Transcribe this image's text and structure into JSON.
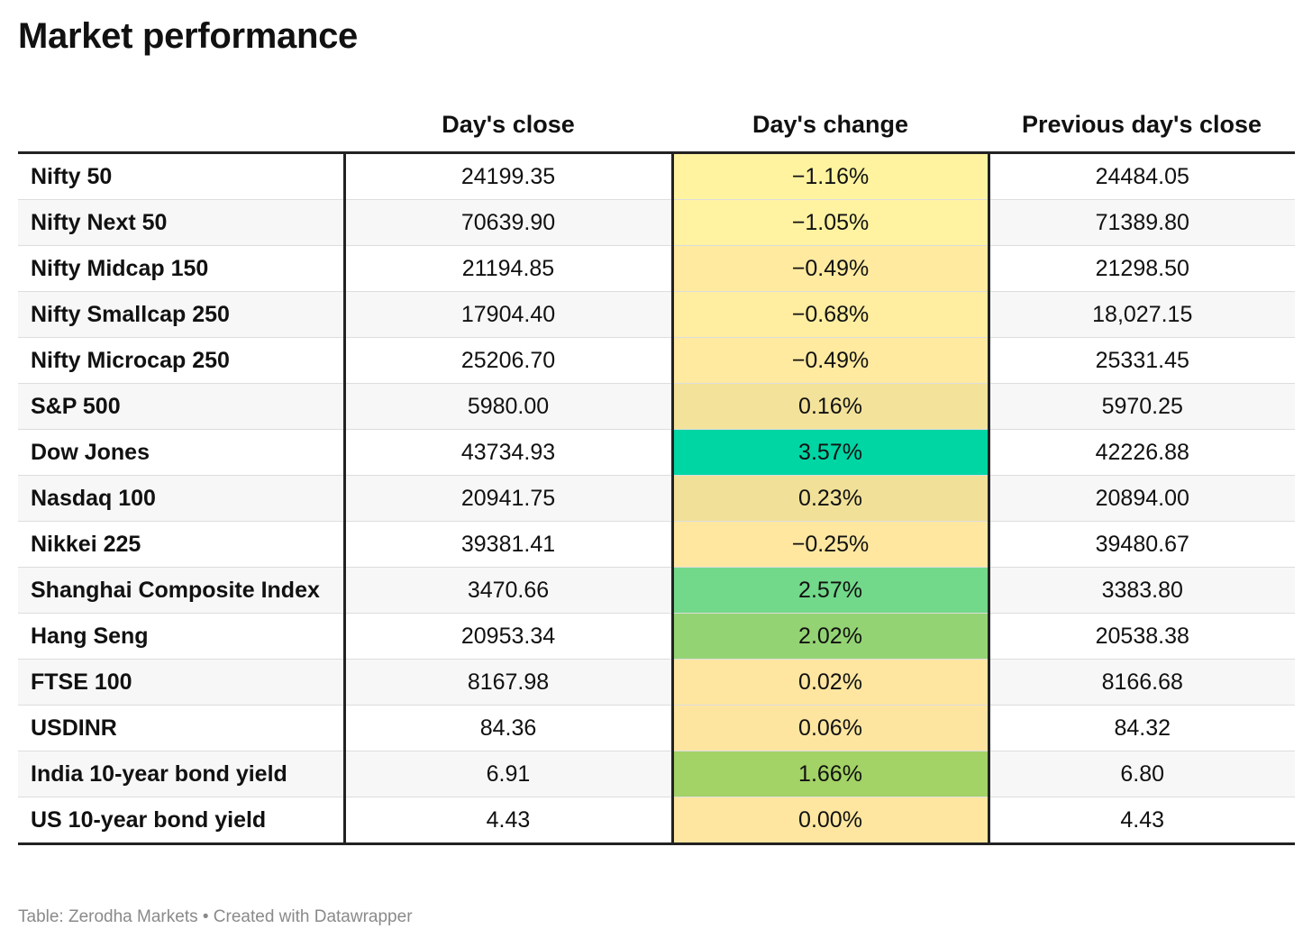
{
  "title": "Market performance",
  "footer": "Table: Zerodha Markets • Created with Datawrapper",
  "chart_data": {
    "type": "table",
    "title": "Market performance",
    "columns": [
      "",
      "Day's close",
      "Day's change",
      "Previous day's close"
    ],
    "rows": [
      {
        "name": "Nifty 50",
        "close": "24199.35",
        "change": "−1.16%",
        "change_value": -1.16,
        "prev": "24484.05",
        "color": "#fff3a0"
      },
      {
        "name": "Nifty Next 50",
        "close": "70639.90",
        "change": "−1.05%",
        "change_value": -1.05,
        "prev": "71389.80",
        "color": "#fff2a0"
      },
      {
        "name": "Nifty Midcap 150",
        "close": "21194.85",
        "change": "−0.49%",
        "change_value": -0.49,
        "prev": "21298.50",
        "color": "#ffeaa0"
      },
      {
        "name": "Nifty Smallcap 250",
        "close": "17904.40",
        "change": "−0.68%",
        "change_value": -0.68,
        "prev": "18,027.15",
        "color": "#ffeda0"
      },
      {
        "name": "Nifty Microcap 250",
        "close": "25206.70",
        "change": "−0.49%",
        "change_value": -0.49,
        "prev": "25331.45",
        "color": "#ffeaa0"
      },
      {
        "name": "S&P 500",
        "close": "5980.00",
        "change": "0.16%",
        "change_value": 0.16,
        "prev": "5970.25",
        "color": "#f3e29a"
      },
      {
        "name": "Dow Jones",
        "close": "43734.93",
        "change": "3.57%",
        "change_value": 3.57,
        "prev": "42226.88",
        "color": "#00d5a4"
      },
      {
        "name": "Nasdaq 100",
        "close": "20941.75",
        "change": "0.23%",
        "change_value": 0.23,
        "prev": "20894.00",
        "color": "#f1e198"
      },
      {
        "name": "Nikkei 225",
        "close": "39381.41",
        "change": "−0.25%",
        "change_value": -0.25,
        "prev": "39480.67",
        "color": "#ffe7a0"
      },
      {
        "name": "Shanghai Composite Index",
        "close": "3470.66",
        "change": "2.57%",
        "change_value": 2.57,
        "prev": "3383.80",
        "color": "#72d88a"
      },
      {
        "name": "Hang Seng",
        "close": "20953.34",
        "change": "2.02%",
        "change_value": 2.02,
        "prev": "20538.38",
        "color": "#94d374"
      },
      {
        "name": "FTSE 100",
        "close": "8167.98",
        "change": "0.02%",
        "change_value": 0.02,
        "prev": "8166.68",
        "color": "#ffe6a0"
      },
      {
        "name": "USDINR",
        "close": "84.36",
        "change": "0.06%",
        "change_value": 0.06,
        "prev": "84.32",
        "color": "#fde5a0"
      },
      {
        "name": "India 10-year bond yield",
        "close": "6.91",
        "change": "1.66%",
        "change_value": 1.66,
        "prev": "6.80",
        "color": "#a3d266"
      },
      {
        "name": "US 10-year bond yield",
        "close": "4.43",
        "change": "0.00%",
        "change_value": 0.0,
        "prev": "4.43",
        "color": "#ffe6a0"
      }
    ]
  }
}
